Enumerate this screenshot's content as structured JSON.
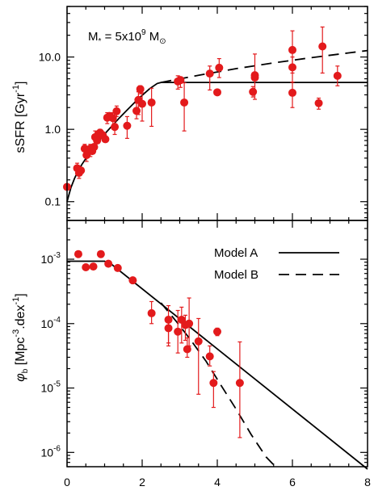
{
  "chart_data": [
    {
      "type": "scatter",
      "ylabel": "sSFR [Gyr",
      "ylabel_sup": "-1",
      "ylabel_end": "]",
      "annotation": {
        "main": "M",
        "sub": "*",
        "eq": " = 5x10",
        "sup": "9",
        "unit": " M",
        "unit_sub": "⊙"
      },
      "x_range": [
        0,
        8
      ],
      "y_scale": "log",
      "y_range": [
        0.055,
        50
      ],
      "y_ticks": [
        {
          "value": 0.1,
          "label": "0.1"
        },
        {
          "value": 1,
          "label": "1.0"
        },
        {
          "value": 10,
          "label": "10.0"
        }
      ],
      "point_color": "#e31a1c",
      "points": [
        {
          "x": 0.0,
          "y": 0.16
        },
        {
          "x": 0.27,
          "y": 0.29,
          "lo": 0.25,
          "hi": 0.34
        },
        {
          "x": 0.32,
          "y": 0.25,
          "lo": 0.21,
          "hi": 0.3
        },
        {
          "x": 0.37,
          "y": 0.27
        },
        {
          "x": 0.47,
          "y": 0.54,
          "lo": 0.45,
          "hi": 0.62
        },
        {
          "x": 0.52,
          "y": 0.44,
          "lo": 0.36,
          "hi": 0.5
        },
        {
          "x": 0.57,
          "y": 0.52
        },
        {
          "x": 0.62,
          "y": 0.54,
          "lo": 0.42,
          "hi": 0.62
        },
        {
          "x": 0.67,
          "y": 0.5
        },
        {
          "x": 0.72,
          "y": 0.57
        },
        {
          "x": 0.75,
          "y": 0.78,
          "lo": 0.6,
          "hi": 0.95
        },
        {
          "x": 0.8,
          "y": 0.7
        },
        {
          "x": 0.83,
          "y": 0.85
        },
        {
          "x": 0.88,
          "y": 0.9,
          "lo": 0.75,
          "hi": 1.0
        },
        {
          "x": 0.95,
          "y": 0.83
        },
        {
          "x": 1.02,
          "y": 0.73
        },
        {
          "x": 1.07,
          "y": 1.45,
          "lo": 1.2,
          "hi": 1.7
        },
        {
          "x": 1.13,
          "y": 1.53
        },
        {
          "x": 1.22,
          "y": 1.43,
          "lo": 1.1,
          "hi": 1.7
        },
        {
          "x": 1.27,
          "y": 1.08,
          "lo": 0.85,
          "hi": 1.3
        },
        {
          "x": 1.32,
          "y": 1.78,
          "lo": 1.5,
          "hi": 2.1
        },
        {
          "x": 1.6,
          "y": 1.12,
          "lo": 0.75,
          "hi": 1.5
        },
        {
          "x": 1.85,
          "y": 1.8,
          "lo": 1.4,
          "hi": 2.3
        },
        {
          "x": 1.9,
          "y": 2.55,
          "lo": 1.6,
          "hi": 3.3
        },
        {
          "x": 1.95,
          "y": 3.6,
          "lo": 3.1,
          "hi": 4.0
        },
        {
          "x": 2.0,
          "y": 2.25,
          "lo": 1.3,
          "hi": 3.2
        },
        {
          "x": 2.25,
          "y": 2.35,
          "lo": 1.1,
          "hi": 3.7
        },
        {
          "x": 2.95,
          "y": 4.6,
          "lo": 3.6,
          "hi": 5.5
        },
        {
          "x": 3.02,
          "y": 4.8,
          "lo": 3.8,
          "hi": 5.3
        },
        {
          "x": 3.12,
          "y": 2.35,
          "lo": 0.95,
          "hi": 4.4
        },
        {
          "x": 3.8,
          "y": 5.9,
          "lo": 3.5,
          "hi": 7.5
        },
        {
          "x": 4.0,
          "y": 3.25
        },
        {
          "x": 4.05,
          "y": 7.1,
          "lo": 5.2,
          "hi": 9.5
        },
        {
          "x": 4.95,
          "y": 3.3,
          "lo": 2.8,
          "hi": 3.9
        },
        {
          "x": 5.0,
          "y": 5.6,
          "lo": 2.6,
          "hi": 11.0
        },
        {
          "x": 5.0,
          "y": 5.2
        },
        {
          "x": 6.0,
          "y": 12.5,
          "lo": 6.0,
          "hi": 23.0
        },
        {
          "x": 6.0,
          "y": 7.2,
          "lo": 4.5,
          "hi": 10.0
        },
        {
          "x": 6.0,
          "y": 3.2,
          "lo": 2.0,
          "hi": 4.5
        },
        {
          "x": 6.7,
          "y": 2.3,
          "lo": 1.9,
          "hi": 2.7
        },
        {
          "x": 6.8,
          "y": 14.0,
          "lo": 6.0,
          "hi": 26.0
        },
        {
          "x": 7.2,
          "y": 5.5,
          "lo": 4.0,
          "hi": 7.5
        }
      ],
      "series": [
        {
          "style": "solid",
          "x": [
            0,
            0.1,
            0.2,
            0.3,
            0.4,
            0.6,
            0.8,
            1.0,
            1.2,
            1.4,
            1.6,
            1.8,
            2.0,
            2.2,
            2.4,
            2.5,
            8.0
          ],
          "y": [
            0.1,
            0.155,
            0.21,
            0.27,
            0.33,
            0.47,
            0.65,
            0.86,
            1.12,
            1.45,
            1.85,
            2.35,
            2.95,
            3.65,
            4.3,
            4.45,
            4.45
          ]
        },
        {
          "style": "dashed",
          "x": [
            2.5,
            3.5,
            4.5,
            5.5,
            6.5,
            7.5,
            8.0
          ],
          "y": [
            4.45,
            5.6,
            6.9,
            8.3,
            9.8,
            11.4,
            12.3
          ]
        }
      ]
    },
    {
      "type": "scatter",
      "ylabel_symbol": "φ",
      "ylabel_symbol_sub": "b",
      "ylabel": " [Mpc",
      "ylabel_sup": "-3",
      "ylabel_mid": ".dex",
      "ylabel_sup2": "-1",
      "ylabel_end": "]",
      "x_range": [
        0,
        8
      ],
      "x_ticks": [
        0,
        2,
        4,
        6,
        8
      ],
      "y_scale": "log",
      "y_range": [
        6e-07,
        0.004
      ],
      "y_ticks": [
        {
          "value": 1e-06,
          "base": "10",
          "exp": "-6"
        },
        {
          "value": 1e-05,
          "base": "10",
          "exp": "-5"
        },
        {
          "value": 0.0001,
          "base": "10",
          "exp": "-4"
        },
        {
          "value": 0.001,
          "base": "10",
          "exp": "-3"
        }
      ],
      "legend": {
        "placement": "top-right",
        "entries": [
          {
            "label": "Model A",
            "style": "solid"
          },
          {
            "label": "Model B",
            "style": "dashed"
          }
        ]
      },
      "points": [
        {
          "x": 0.3,
          "y": 0.0012
        },
        {
          "x": 0.5,
          "y": 0.00075
        },
        {
          "x": 0.7,
          "y": 0.00077
        },
        {
          "x": 0.9,
          "y": 0.0012
        },
        {
          "x": 1.1,
          "y": 0.00085
        },
        {
          "x": 1.35,
          "y": 0.00073
        },
        {
          "x": 1.75,
          "y": 0.00047
        },
        {
          "x": 2.25,
          "y": 0.000145,
          "lo": 0.0001,
          "hi": 0.00022
        },
        {
          "x": 2.7,
          "y": 0.000115,
          "lo": 4.5e-05,
          "hi": 0.00019
        },
        {
          "x": 2.7,
          "y": 8.5e-05,
          "lo": 5e-05,
          "hi": 0.00012
        },
        {
          "x": 2.95,
          "y": 7.5e-05,
          "lo": 3.5e-05,
          "hi": 0.00016
        },
        {
          "x": 3.05,
          "y": 0.000115,
          "lo": 5e-05,
          "hi": 0.00018
        },
        {
          "x": 3.15,
          "y": 9.5e-05,
          "lo": 5.5e-05,
          "hi": 0.000135
        },
        {
          "x": 3.2,
          "y": 4e-05,
          "lo": 3e-05,
          "hi": 6e-05
        },
        {
          "x": 3.25,
          "y": 0.0001,
          "lo": 4.5e-05,
          "hi": 0.00025
        },
        {
          "x": 3.5,
          "y": 5.3e-05,
          "lo": 8e-06,
          "hi": 0.00012
        },
        {
          "x": 3.8,
          "y": 3.1e-05,
          "lo": 2.2e-05,
          "hi": 4.5e-05
        },
        {
          "x": 3.9,
          "y": 1.2e-05,
          "lo": 5e-06,
          "hi": 1.8e-05
        },
        {
          "x": 4.0,
          "y": 7.5e-05,
          "lo": 6.5e-05,
          "hi": 8.5e-05
        },
        {
          "x": 4.6,
          "y": 1.2e-05,
          "lo": 1.7e-06,
          "hi": 5.2e-05
        }
      ],
      "series": [
        {
          "name": "Model A",
          "style": "solid",
          "x": [
            0,
            1.0,
            1.2,
            8.0
          ],
          "y": [
            0.00093,
            0.00093,
            0.00082,
            5.5e-07
          ]
        },
        {
          "name": "Model B",
          "style": "dashed",
          "x": [
            2.5,
            2.9,
            3.3,
            3.7,
            4.1,
            4.5,
            4.9,
            5.3,
            5.55
          ],
          "y": [
            0.00021,
            0.00011,
            5.5e-05,
            2.6e-05,
            1.1e-05,
            4.7e-06,
            1.9e-06,
            8.5e-07,
            6e-07
          ]
        }
      ]
    }
  ]
}
